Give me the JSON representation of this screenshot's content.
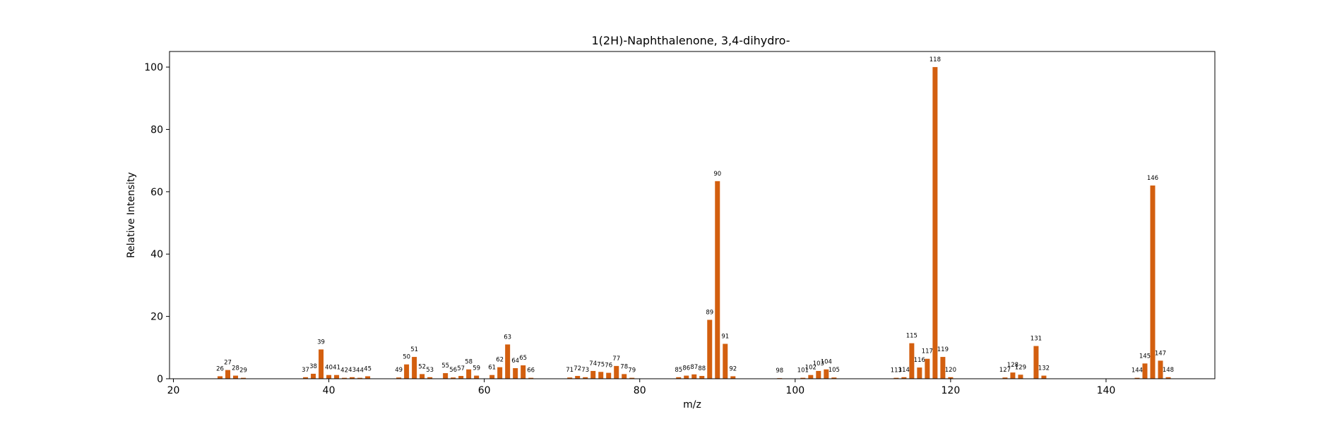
{
  "chart_data": {
    "type": "bar",
    "title": "1(2H)-Naphthalenone, 3,4-dihydro-",
    "xlabel": "m/z",
    "ylabel": "Relative Intensity",
    "xlim": [
      19.5,
      154
    ],
    "ylim": [
      0,
      105
    ],
    "xticks": [
      20,
      40,
      60,
      80,
      100,
      120,
      140
    ],
    "yticks": [
      0,
      20,
      40,
      60,
      80,
      100
    ],
    "grid": false,
    "bar_color": "#d35f0f",
    "peaks": [
      {
        "x": 26,
        "y": 0.8,
        "label": "26"
      },
      {
        "x": 27,
        "y": 2.8,
        "label": "27"
      },
      {
        "x": 28,
        "y": 1.0,
        "label": "28"
      },
      {
        "x": 29,
        "y": 0.3,
        "label": "29"
      },
      {
        "x": 37,
        "y": 0.5,
        "label": "37"
      },
      {
        "x": 38,
        "y": 1.6,
        "label": "38"
      },
      {
        "x": 39,
        "y": 9.4,
        "label": "39"
      },
      {
        "x": 40,
        "y": 1.2,
        "label": "40"
      },
      {
        "x": 41,
        "y": 1.2,
        "label": "41"
      },
      {
        "x": 42,
        "y": 0.3,
        "label": "42"
      },
      {
        "x": 43,
        "y": 0.5,
        "label": "43"
      },
      {
        "x": 44,
        "y": 0.3,
        "label": "44"
      },
      {
        "x": 45,
        "y": 0.8,
        "label": "45"
      },
      {
        "x": 49,
        "y": 0.4,
        "label": "49"
      },
      {
        "x": 50,
        "y": 4.6,
        "label": "50"
      },
      {
        "x": 51,
        "y": 7.0,
        "label": "51"
      },
      {
        "x": 52,
        "y": 1.5,
        "label": "52"
      },
      {
        "x": 53,
        "y": 0.5,
        "label": "53"
      },
      {
        "x": 55,
        "y": 1.8,
        "label": "55"
      },
      {
        "x": 56,
        "y": 0.4,
        "label": "56"
      },
      {
        "x": 57,
        "y": 0.9,
        "label": "57"
      },
      {
        "x": 58,
        "y": 3.0,
        "label": "58"
      },
      {
        "x": 59,
        "y": 1.0,
        "label": "59"
      },
      {
        "x": 61,
        "y": 1.2,
        "label": "61"
      },
      {
        "x": 62,
        "y": 3.7,
        "label": "62"
      },
      {
        "x": 63,
        "y": 11.0,
        "label": "63"
      },
      {
        "x": 64,
        "y": 3.4,
        "label": "64"
      },
      {
        "x": 65,
        "y": 4.3,
        "label": "65"
      },
      {
        "x": 66,
        "y": 0.3,
        "label": "66"
      },
      {
        "x": 71,
        "y": 0.4,
        "label": "71"
      },
      {
        "x": 72,
        "y": 0.9,
        "label": "72"
      },
      {
        "x": 73,
        "y": 0.5,
        "label": "73"
      },
      {
        "x": 74,
        "y": 2.5,
        "label": "74"
      },
      {
        "x": 75,
        "y": 2.2,
        "label": "75"
      },
      {
        "x": 76,
        "y": 1.9,
        "label": "76"
      },
      {
        "x": 77,
        "y": 4.1,
        "label": "77"
      },
      {
        "x": 78,
        "y": 1.5,
        "label": "78"
      },
      {
        "x": 79,
        "y": 0.3,
        "label": "79"
      },
      {
        "x": 85,
        "y": 0.5,
        "label": "85"
      },
      {
        "x": 86,
        "y": 1.0,
        "label": "86"
      },
      {
        "x": 87,
        "y": 1.4,
        "label": "87"
      },
      {
        "x": 88,
        "y": 0.9,
        "label": "88"
      },
      {
        "x": 89,
        "y": 18.9,
        "label": "89"
      },
      {
        "x": 90,
        "y": 63.4,
        "label": "90"
      },
      {
        "x": 91,
        "y": 11.2,
        "label": "91"
      },
      {
        "x": 92,
        "y": 0.8,
        "label": "92"
      },
      {
        "x": 98,
        "y": 0.2,
        "label": "98"
      },
      {
        "x": 101,
        "y": 0.3,
        "label": "101"
      },
      {
        "x": 102,
        "y": 1.2,
        "label": "102"
      },
      {
        "x": 103,
        "y": 2.5,
        "label": "103"
      },
      {
        "x": 104,
        "y": 3.0,
        "label": "104"
      },
      {
        "x": 105,
        "y": 0.4,
        "label": "105"
      },
      {
        "x": 113,
        "y": 0.3,
        "label": "113"
      },
      {
        "x": 114,
        "y": 0.5,
        "label": "114"
      },
      {
        "x": 115,
        "y": 11.4,
        "label": "115"
      },
      {
        "x": 116,
        "y": 3.6,
        "label": "116"
      },
      {
        "x": 117,
        "y": 6.4,
        "label": "117"
      },
      {
        "x": 118,
        "y": 100.0,
        "label": "118"
      },
      {
        "x": 119,
        "y": 7.0,
        "label": "119"
      },
      {
        "x": 120,
        "y": 0.5,
        "label": "120"
      },
      {
        "x": 127,
        "y": 0.4,
        "label": "127"
      },
      {
        "x": 128,
        "y": 2.0,
        "label": "128"
      },
      {
        "x": 129,
        "y": 1.3,
        "label": "129"
      },
      {
        "x": 131,
        "y": 10.5,
        "label": "131"
      },
      {
        "x": 132,
        "y": 1.0,
        "label": "132"
      },
      {
        "x": 144,
        "y": 0.3,
        "label": "144"
      },
      {
        "x": 145,
        "y": 4.9,
        "label": "145"
      },
      {
        "x": 146,
        "y": 62.0,
        "label": "146"
      },
      {
        "x": 147,
        "y": 5.8,
        "label": "147"
      },
      {
        "x": 148,
        "y": 0.5,
        "label": "148"
      }
    ]
  }
}
